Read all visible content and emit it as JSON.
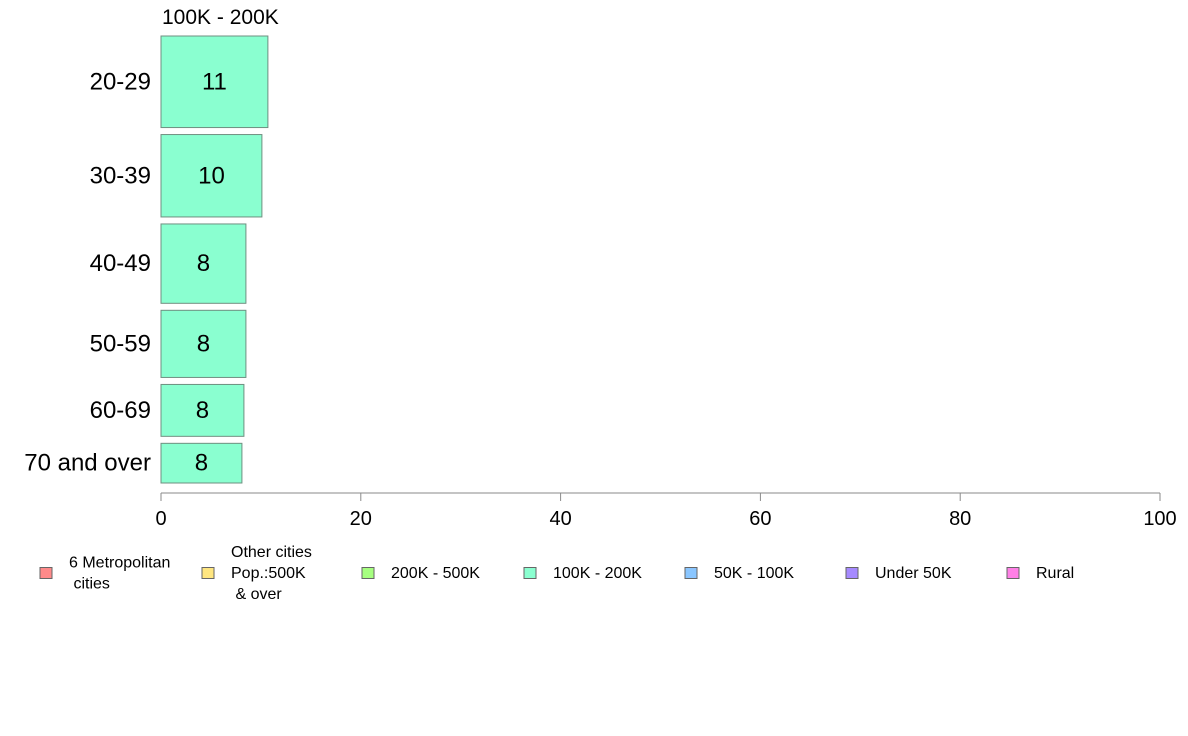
{
  "chart_data": {
    "type": "bar",
    "orientation": "horizontal",
    "title": "100K - 200K",
    "xlabel": "",
    "ylabel": "",
    "categories": [
      "20-29",
      "30-39",
      "40-49",
      "50-59",
      "60-69",
      "70 and over"
    ],
    "series": [
      {
        "name": "100K - 200K",
        "color": "#8affd0",
        "values": [
          11,
          10,
          8,
          8,
          8,
          8
        ],
        "value_labels": [
          "11",
          "10",
          "8",
          "8",
          "8",
          "8"
        ]
      }
    ],
    "bar_extent_values": [
      10.7,
      10.1,
      8.5,
      8.5,
      8.3,
      8.1
    ],
    "bar_relative_thickness": [
      0.3,
      0.27,
      0.26,
      0.22,
      0.17,
      0.13
    ],
    "xlim": [
      0,
      100
    ],
    "xticks": [
      0,
      20,
      40,
      60,
      80,
      100
    ],
    "xtick_labels": [
      "0",
      "20",
      "40",
      "60",
      "80",
      "100"
    ],
    "grid": false,
    "legend_position": "bottom",
    "legend": [
      {
        "label_lines": [
          "6 Metropolitan",
          " cities"
        ],
        "color": "#ff8a8a"
      },
      {
        "label_lines": [
          "Other cities",
          "Pop.:500K",
          " & over"
        ],
        "color": "#ffe680"
      },
      {
        "label_lines": [
          "200K - 500K"
        ],
        "color": "#a6ff80"
      },
      {
        "label_lines": [
          "100K - 200K"
        ],
        "color": "#8affd0"
      },
      {
        "label_lines": [
          "50K - 100K"
        ],
        "color": "#8ac6ff"
      },
      {
        "label_lines": [
          "Under 50K"
        ],
        "color": "#a68aff"
      },
      {
        "label_lines": [
          "Rural"
        ],
        "color": "#ff80e6"
      }
    ]
  }
}
